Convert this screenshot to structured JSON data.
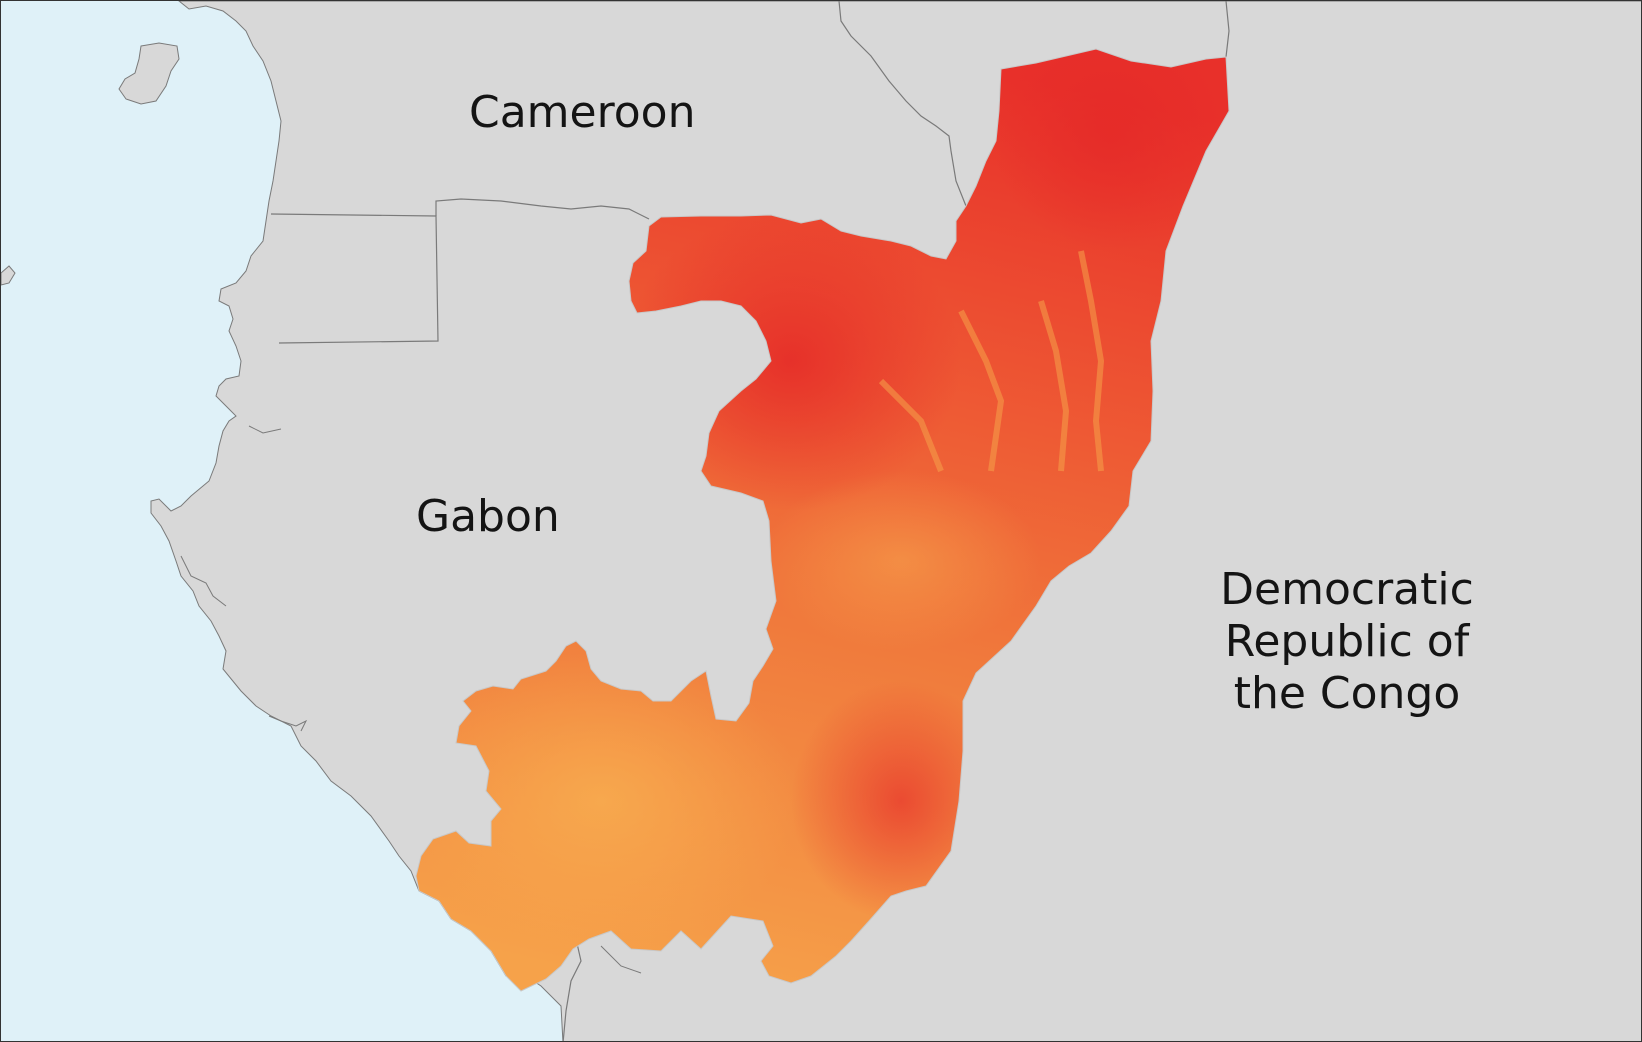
{
  "map": {
    "labels": {
      "cameroon": "Cameroon",
      "gabon": "Gabon",
      "drc": [
        "Democratic",
        "Republic of",
        "the Congo"
      ]
    },
    "highlighted_country_colors": {
      "high": "#e8302a",
      "mid": "#ef6a3a",
      "low": "#f6a24a"
    },
    "colors": {
      "ocean": "#dff1f8",
      "land": "#d8d8d8",
      "border": "#7a7a7a"
    }
  }
}
